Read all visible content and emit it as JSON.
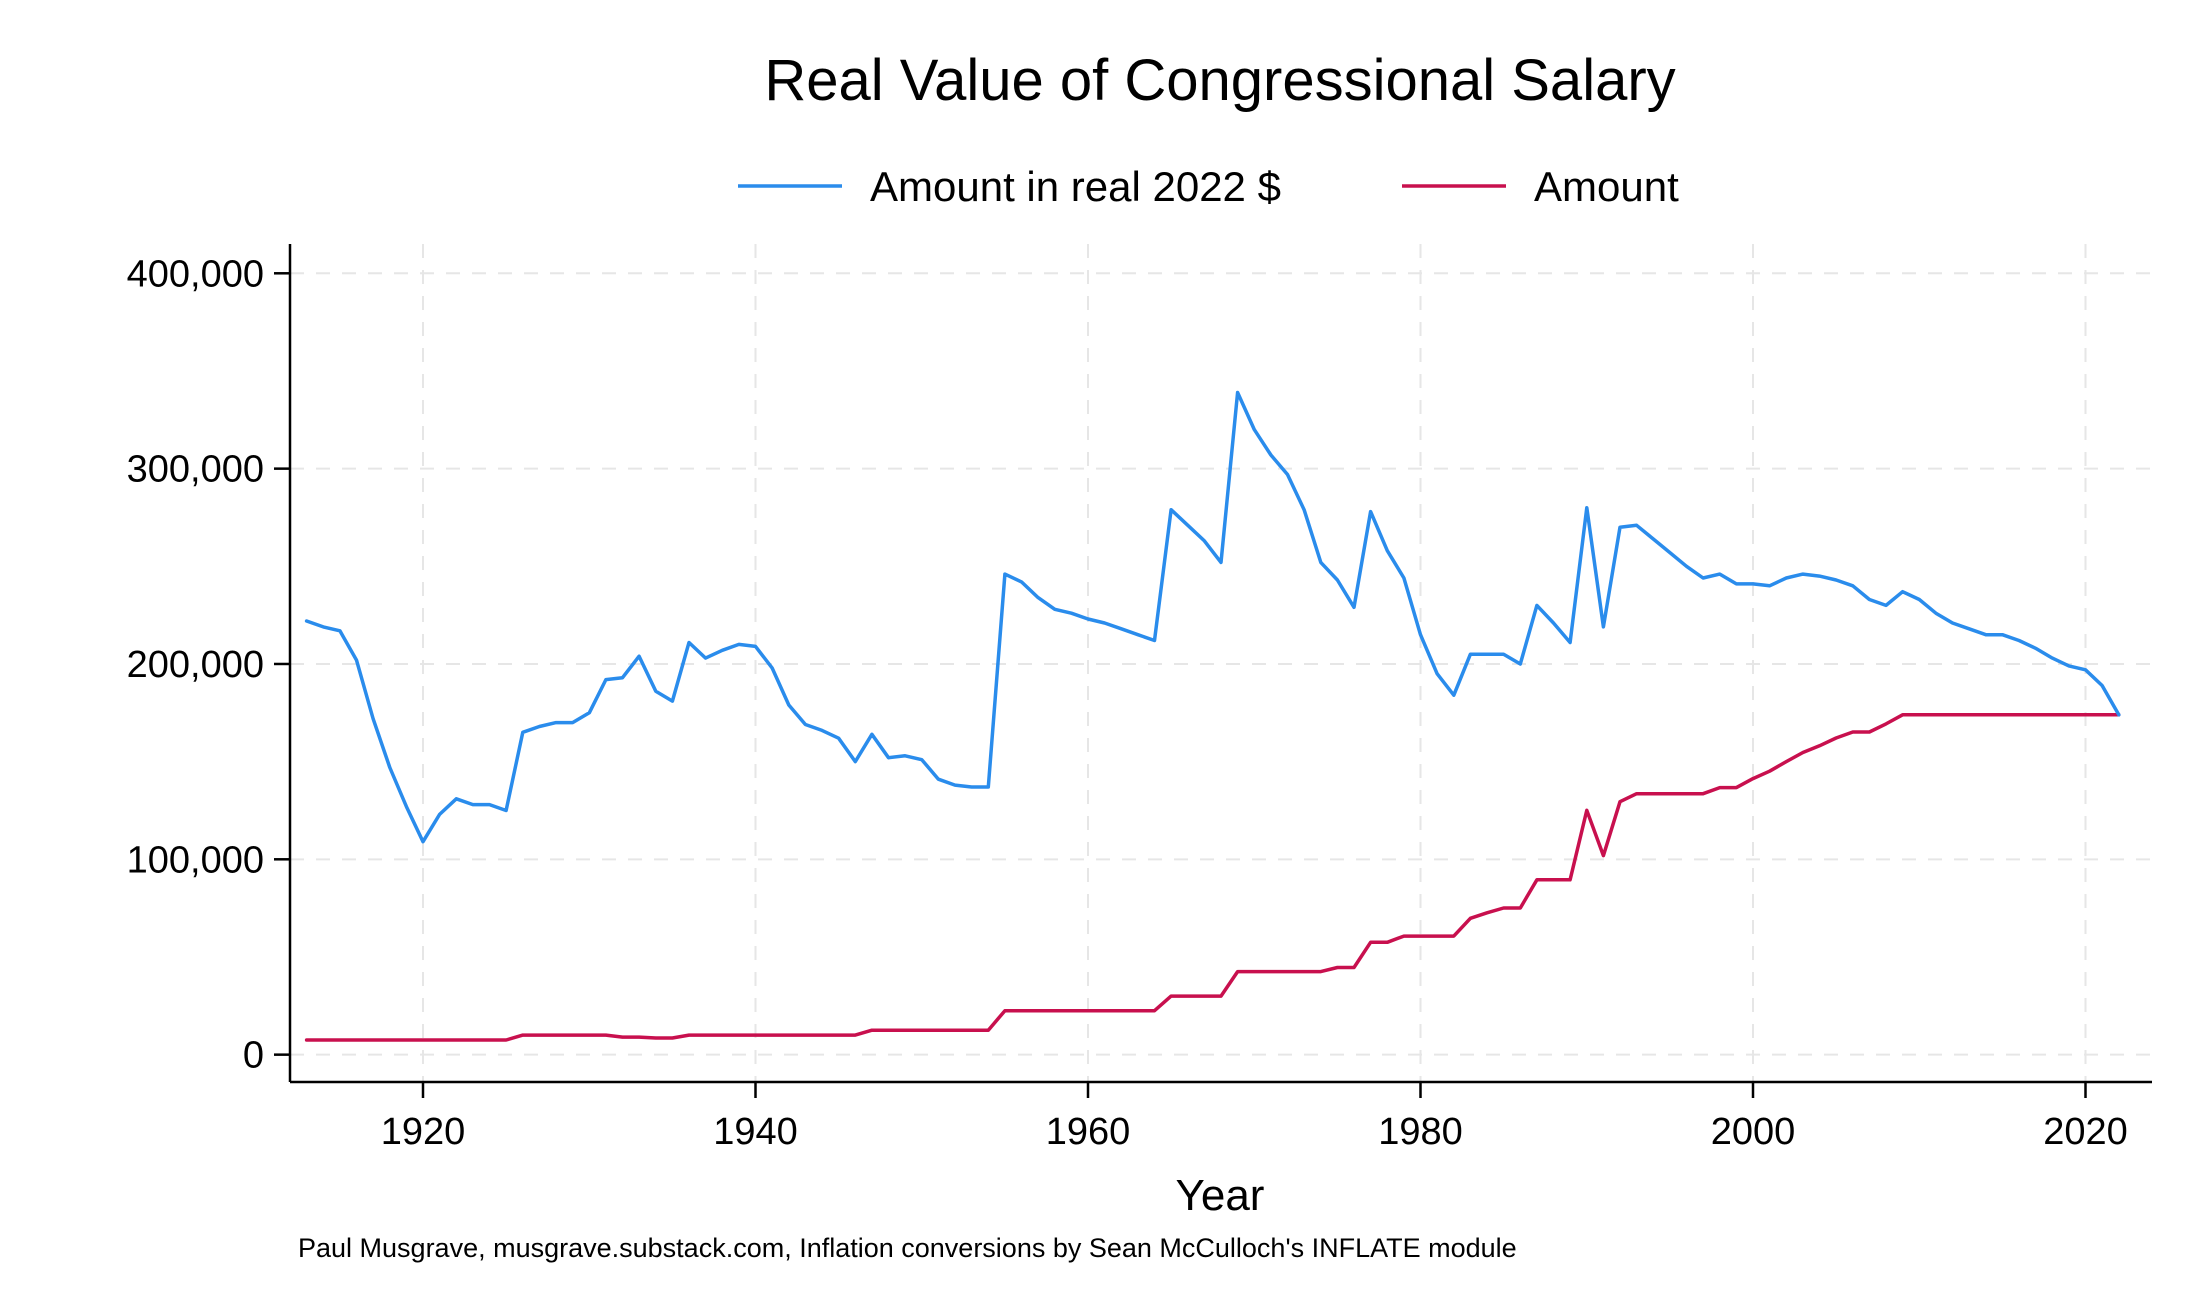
{
  "chart_data": {
    "type": "line",
    "title": "Real Value of Congressional Salary",
    "xlabel": "Year",
    "ylabel": "",
    "xlim": [
      1912,
      2024
    ],
    "ylim": [
      -14000,
      415000
    ],
    "x_ticks": [
      1920,
      1940,
      1960,
      1980,
      2000,
      2020
    ],
    "x_tick_labels": [
      "1920",
      "1940",
      "1960",
      "1980",
      "2000",
      "2020"
    ],
    "y_ticks": [
      0,
      100000,
      200000,
      300000,
      400000
    ],
    "y_tick_labels": [
      "0",
      "100,000",
      "200,000",
      "300,000",
      "400,000"
    ],
    "grid": true,
    "legend_position": "top",
    "note": "Paul Musgrave, musgrave.substack.com, Inflation conversions by Sean McCulloch's INFLATE module",
    "series": [
      {
        "name": "Amount in real 2022 $",
        "color": "#2a8cec",
        "x": [
          1913,
          1914,
          1915,
          1916,
          1917,
          1918,
          1919,
          1920,
          1921,
          1922,
          1923,
          1924,
          1925,
          1926,
          1927,
          1928,
          1929,
          1930,
          1931,
          1932,
          1933,
          1934,
          1935,
          1936,
          1937,
          1938,
          1939,
          1940,
          1941,
          1942,
          1943,
          1944,
          1945,
          1946,
          1947,
          1948,
          1949,
          1950,
          1951,
          1952,
          1953,
          1954,
          1955,
          1956,
          1957,
          1958,
          1959,
          1960,
          1961,
          1962,
          1963,
          1964,
          1965,
          1966,
          1967,
          1968,
          1969,
          1970,
          1971,
          1972,
          1973,
          1974,
          1975,
          1976,
          1977,
          1978,
          1979,
          1980,
          1981,
          1982,
          1983,
          1984,
          1985,
          1986,
          1987,
          1988,
          1989,
          1990,
          1991,
          1992,
          1993,
          1994,
          1995,
          1996,
          1997,
          1998,
          1999,
          2000,
          2001,
          2002,
          2003,
          2004,
          2005,
          2006,
          2007,
          2008,
          2009,
          2010,
          2011,
          2012,
          2013,
          2014,
          2015,
          2016,
          2017,
          2018,
          2019,
          2020,
          2021,
          2022
        ],
        "values": [
          222000,
          219000,
          217000,
          202000,
          172000,
          147000,
          127000,
          109000,
          123000,
          131000,
          128000,
          128000,
          125000,
          165000,
          168000,
          170000,
          170000,
          175000,
          192000,
          193000,
          204000,
          186000,
          181000,
          211000,
          203000,
          207000,
          210000,
          209000,
          198000,
          179000,
          169000,
          166000,
          162000,
          150000,
          164000,
          152000,
          153000,
          151000,
          141000,
          138000,
          137000,
          137000,
          246000,
          242000,
          234000,
          228000,
          226000,
          223000,
          221000,
          218000,
          215000,
          212000,
          279000,
          271000,
          263000,
          252000,
          339000,
          320000,
          307000,
          297000,
          279000,
          252000,
          243000,
          229000,
          278000,
          258000,
          244000,
          215000,
          195000,
          184000,
          205000,
          205000,
          205000,
          200000,
          230000,
          221000,
          211000,
          280000,
          219000,
          270000,
          271000,
          264000,
          257000,
          250000,
          244000,
          246000,
          241000,
          241000,
          240000,
          244000,
          246000,
          245000,
          243000,
          240000,
          233000,
          230000,
          237000,
          233000,
          226000,
          221000,
          218000,
          215000,
          215000,
          212000,
          208000,
          203000,
          199000,
          197000,
          189000,
          174000
        ]
      },
      {
        "name": "Amount",
        "color": "#c8104e",
        "x": [
          1913,
          1914,
          1915,
          1916,
          1917,
          1918,
          1919,
          1920,
          1921,
          1922,
          1923,
          1924,
          1925,
          1926,
          1927,
          1928,
          1929,
          1930,
          1931,
          1932,
          1933,
          1934,
          1935,
          1936,
          1937,
          1938,
          1939,
          1940,
          1941,
          1942,
          1943,
          1944,
          1945,
          1946,
          1947,
          1948,
          1949,
          1950,
          1951,
          1952,
          1953,
          1954,
          1955,
          1956,
          1957,
          1958,
          1959,
          1960,
          1961,
          1962,
          1963,
          1964,
          1965,
          1966,
          1967,
          1968,
          1969,
          1970,
          1971,
          1972,
          1973,
          1974,
          1975,
          1976,
          1977,
          1978,
          1979,
          1980,
          1981,
          1982,
          1983,
          1984,
          1985,
          1986,
          1987,
          1988,
          1989,
          1990,
          1991,
          1992,
          1993,
          1994,
          1995,
          1996,
          1997,
          1998,
          1999,
          2000,
          2001,
          2002,
          2003,
          2004,
          2005,
          2006,
          2007,
          2008,
          2009,
          2010,
          2011,
          2012,
          2013,
          2014,
          2015,
          2016,
          2017,
          2018,
          2019,
          2020,
          2021,
          2022
        ],
        "values": [
          7500,
          7500,
          7500,
          7500,
          7500,
          7500,
          7500,
          7500,
          7500,
          7500,
          7500,
          7500,
          7500,
          10000,
          10000,
          10000,
          10000,
          10000,
          10000,
          9000,
          9000,
          8500,
          8500,
          10000,
          10000,
          10000,
          10000,
          10000,
          10000,
          10000,
          10000,
          10000,
          10000,
          10000,
          12500,
          12500,
          12500,
          12500,
          12500,
          12500,
          12500,
          12500,
          22500,
          22500,
          22500,
          22500,
          22500,
          22500,
          22500,
          22500,
          22500,
          22500,
          30000,
          30000,
          30000,
          30000,
          42500,
          42500,
          42500,
          42500,
          42500,
          42500,
          44600,
          44600,
          57500,
          57500,
          60700,
          60700,
          60700,
          60700,
          69800,
          72600,
          75100,
          75100,
          89500,
          89500,
          89500,
          125100,
          101900,
          129500,
          133600,
          133600,
          133600,
          133600,
          133600,
          136700,
          136700,
          141300,
          145100,
          150000,
          154700,
          158100,
          162100,
          165200,
          165200,
          169300,
          174000,
          174000,
          174000,
          174000,
          174000,
          174000,
          174000,
          174000,
          174000,
          174000,
          174000,
          174000,
          174000,
          174000
        ]
      }
    ]
  }
}
